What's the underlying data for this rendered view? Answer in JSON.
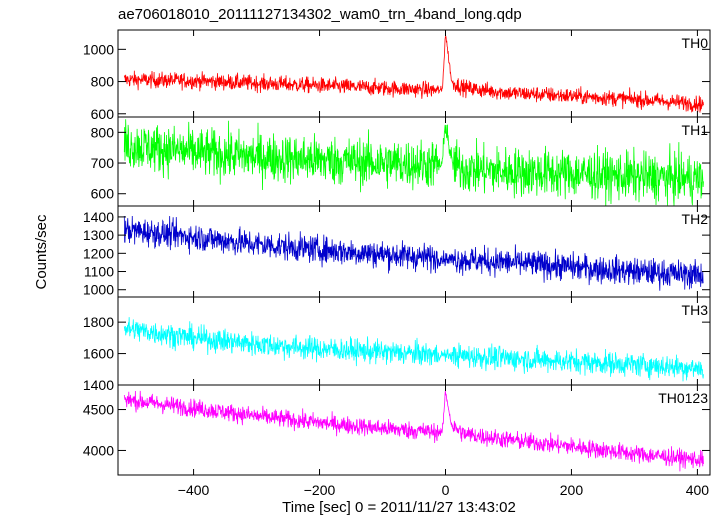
{
  "chart_data": {
    "type": "line",
    "title": "ae706018010_20111127134302_wam0_trn_4band_long.qdp",
    "xlabel": "Time [sec] 0 = 2011/11/27 13:43:02",
    "ylabel": "Counts/sec",
    "xlim": [
      -520,
      420
    ],
    "xticks": [
      -400,
      -200,
      0,
      200,
      400
    ],
    "xtick_labels": [
      "−400",
      "−200",
      "0",
      "200",
      "400"
    ],
    "grid": false,
    "series_x_range": [
      -510,
      410
    ],
    "panels": [
      {
        "name": "TH0",
        "color": "#ff0000",
        "ylim": [
          580,
          1120
        ],
        "yticks": [
          600,
          800,
          1000
        ],
        "trend": [
          [
            -510,
            812
          ],
          [
            -400,
            805
          ],
          [
            -300,
            790
          ],
          [
            -200,
            775
          ],
          [
            -100,
            760
          ],
          [
            -5,
            745
          ],
          [
            0,
            1100
          ],
          [
            10,
            795
          ],
          [
            30,
            760
          ],
          [
            100,
            730
          ],
          [
            200,
            710
          ],
          [
            300,
            690
          ],
          [
            410,
            660
          ]
        ],
        "noise": 25
      },
      {
        "name": "TH1",
        "color": "#00ff00",
        "ylim": [
          560,
          850
        ],
        "yticks": [
          600,
          700,
          800
        ],
        "trend": [
          [
            -510,
            760
          ],
          [
            -400,
            735
          ],
          [
            -300,
            720
          ],
          [
            -200,
            710
          ],
          [
            -100,
            700
          ],
          [
            -5,
            695
          ],
          [
            0,
            835
          ],
          [
            10,
            700
          ],
          [
            30,
            680
          ],
          [
            100,
            672
          ],
          [
            200,
            665
          ],
          [
            300,
            655
          ],
          [
            410,
            648
          ]
        ],
        "noise": 40
      },
      {
        "name": "TH2",
        "color": "#0000cc",
        "ylim": [
          960,
          1460
        ],
        "yticks": [
          1000,
          1100,
          1200,
          1300,
          1400
        ],
        "trend": [
          [
            -510,
            1330
          ],
          [
            -400,
            1290
          ],
          [
            -300,
            1250
          ],
          [
            -200,
            1220
          ],
          [
            -100,
            1195
          ],
          [
            0,
            1170
          ],
          [
            100,
            1150
          ],
          [
            200,
            1125
          ],
          [
            300,
            1100
          ],
          [
            410,
            1080
          ]
        ],
        "noise": 38
      },
      {
        "name": "TH3",
        "color": "#00ffff",
        "ylim": [
          1400,
          1960
        ],
        "yticks": [
          1400,
          1600,
          1800
        ],
        "trend": [
          [
            -510,
            1760
          ],
          [
            -400,
            1700
          ],
          [
            -300,
            1660
          ],
          [
            -200,
            1630
          ],
          [
            -100,
            1610
          ],
          [
            0,
            1590
          ],
          [
            100,
            1570
          ],
          [
            200,
            1550
          ],
          [
            300,
            1530
          ],
          [
            410,
            1505
          ]
        ],
        "noise": 38
      },
      {
        "name": "TH0123",
        "color": "#ff00ff",
        "ylim": [
          3700,
          4800
        ],
        "yticks": [
          4000,
          4500
        ],
        "trend": [
          [
            -510,
            4620
          ],
          [
            -400,
            4520
          ],
          [
            -300,
            4420
          ],
          [
            -200,
            4340
          ],
          [
            -100,
            4270
          ],
          [
            -5,
            4220
          ],
          [
            0,
            4720
          ],
          [
            10,
            4300
          ],
          [
            30,
            4200
          ],
          [
            100,
            4130
          ],
          [
            200,
            4050
          ],
          [
            300,
            3960
          ],
          [
            410,
            3880
          ]
        ],
        "noise": 55
      }
    ]
  }
}
